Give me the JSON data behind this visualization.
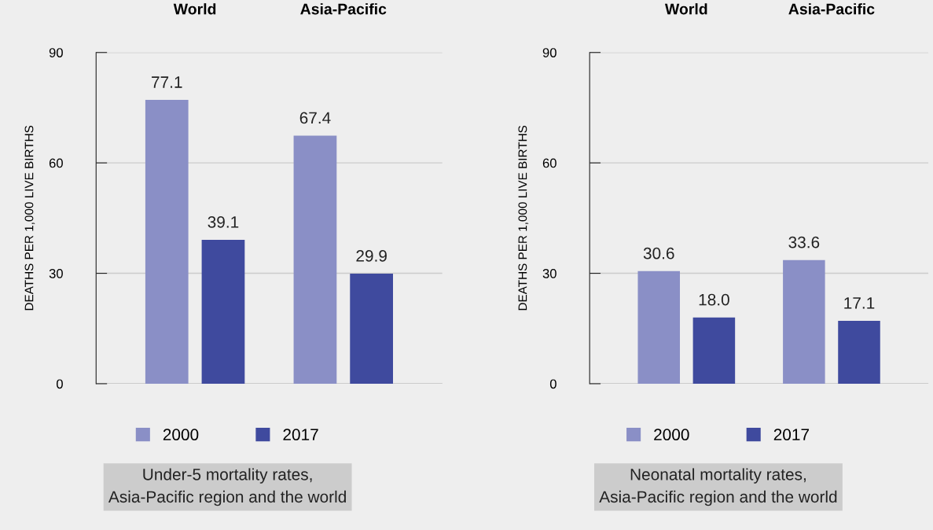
{
  "chart_data": [
    {
      "type": "bar",
      "title": "Under-5 mortality rates, Asia-Pacific region and the world",
      "ylabel": "DEATHS PER 1,000 LIVE BIRTHS",
      "categories": [
        "World",
        "Asia-Pacific"
      ],
      "series": [
        {
          "name": "2000",
          "color": "#8a8fc6",
          "values": [
            77.1,
            67.4
          ]
        },
        {
          "name": "2017",
          "color": "#3f4a9e",
          "values": [
            39.1,
            29.9
          ]
        }
      ],
      "ylim": [
        0,
        90
      ],
      "yticks": [
        0,
        30,
        60,
        90
      ],
      "grid": "y",
      "legend": "bottom",
      "data_labels": true
    },
    {
      "type": "bar",
      "title": "Neonatal mortality rates, Asia-Pacific region and the world",
      "ylabel": "DEATHS PER 1,000 LIVE BIRTHS",
      "categories": [
        "World",
        "Asia-Pacific"
      ],
      "series": [
        {
          "name": "2000",
          "color": "#8a8fc6",
          "values": [
            30.6,
            33.6
          ],
          "value_labels": [
            "30.6",
            "33.6"
          ]
        },
        {
          "name": "2017",
          "color": "#3f4a9e",
          "values": [
            18.0,
            17.1
          ],
          "value_labels": [
            "18.0",
            "17.1"
          ]
        }
      ],
      "ylim": [
        0,
        90
      ],
      "yticks": [
        0,
        30,
        60,
        90
      ],
      "grid": "y",
      "legend": "bottom"
    }
  ]
}
